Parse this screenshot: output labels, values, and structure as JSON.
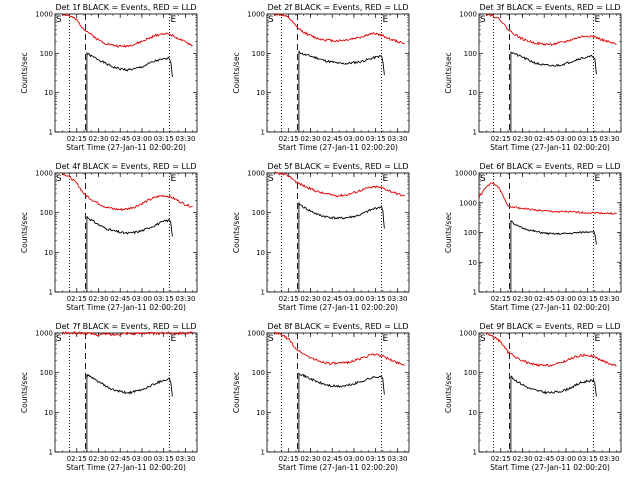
{
  "colors": {
    "events": "#000000",
    "lld": "#e00000",
    "frame": "#000000"
  },
  "chart_data": [
    {
      "type": "line",
      "title": "Det 1f BLACK = Events, RED = LLD",
      "xlabel": "Start Time (27-Jan-11 02:00:20)",
      "ylabel": "Counts/sec",
      "x_ticks": [
        "02:15",
        "02:30",
        "02:45",
        "03:00",
        "03:15",
        "03:30"
      ],
      "y_ticks": [
        "1",
        "10",
        "100",
        "1000"
      ],
      "y_scale": "log",
      "ylim": [
        1,
        1000
      ],
      "start_marker": "S",
      "end_marker": "E",
      "series": [
        {
          "name": "Events",
          "x": [
            "02:21",
            "02:22",
            "02:25",
            "02:30",
            "02:35",
            "02:40",
            "02:45",
            "02:50",
            "02:55",
            "03:00",
            "03:05",
            "03:10",
            "03:15",
            "03:19",
            "03:20",
            "03:21"
          ],
          "y": [
            null,
            100,
            85,
            70,
            55,
            45,
            40,
            38,
            40,
            45,
            55,
            65,
            70,
            75,
            60,
            25
          ]
        },
        {
          "name": "LLD",
          "x": [
            "02:05",
            "02:10",
            "02:15",
            "02:18",
            "02:20",
            "02:25",
            "02:30",
            "02:35",
            "02:40",
            "02:45",
            "02:50",
            "02:55",
            "03:00",
            "03:05",
            "03:10",
            "03:15",
            "03:20",
            "03:25",
            "03:30",
            "03:35"
          ],
          "y": [
            1000,
            900,
            700,
            500,
            420,
            300,
            220,
            180,
            160,
            150,
            155,
            170,
            200,
            240,
            290,
            320,
            300,
            240,
            190,
            160
          ]
        }
      ]
    },
    {
      "type": "line",
      "title": "Det 2f BLACK = Events, RED = LLD",
      "xlabel": "Start Time (27-Jan-11 02:00:20)",
      "ylabel": "Counts/sec",
      "x_ticks": [
        "02:15",
        "02:30",
        "02:45",
        "03:00",
        "03:15",
        "03:30"
      ],
      "y_ticks": [
        "1",
        "10",
        "100",
        "1000"
      ],
      "y_scale": "log",
      "ylim": [
        1,
        1000
      ],
      "start_marker": "S",
      "end_marker": "E",
      "series": [
        {
          "name": "Events",
          "x": [
            "02:21",
            "02:22",
            "02:25",
            "02:30",
            "02:35",
            "02:40",
            "02:45",
            "02:50",
            "02:55",
            "03:00",
            "03:05",
            "03:10",
            "03:15",
            "03:19",
            "03:20",
            "03:21"
          ],
          "y": [
            null,
            110,
            95,
            85,
            75,
            65,
            60,
            55,
            55,
            58,
            62,
            70,
            80,
            85,
            60,
            28
          ]
        },
        {
          "name": "LLD",
          "x": [
            "02:05",
            "02:10",
            "02:15",
            "02:18",
            "02:20",
            "02:25",
            "02:30",
            "02:35",
            "02:40",
            "02:45",
            "02:50",
            "02:55",
            "03:00",
            "03:05",
            "03:10",
            "03:15",
            "03:20",
            "03:25",
            "03:30",
            "03:35"
          ],
          "y": [
            1000,
            950,
            800,
            600,
            480,
            350,
            280,
            240,
            220,
            210,
            210,
            220,
            240,
            260,
            300,
            320,
            280,
            230,
            200,
            180
          ]
        }
      ]
    },
    {
      "type": "line",
      "title": "Det 3f BLACK = Events, RED = LLD",
      "xlabel": "Start Time (27-Jan-11 02:00:20)",
      "ylabel": "Counts/sec",
      "x_ticks": [
        "02:15",
        "02:30",
        "02:45",
        "03:00",
        "03:15",
        "03:30"
      ],
      "y_ticks": [
        "1",
        "10",
        "100",
        "1000"
      ],
      "y_scale": "log",
      "ylim": [
        1,
        1000
      ],
      "start_marker": "S",
      "end_marker": "E",
      "series": [
        {
          "name": "Events",
          "x": [
            "02:21",
            "02:22",
            "02:25",
            "02:30",
            "02:35",
            "02:40",
            "02:45",
            "02:50",
            "02:55",
            "03:00",
            "03:05",
            "03:10",
            "03:15",
            "03:19",
            "03:20",
            "03:21"
          ],
          "y": [
            null,
            110,
            95,
            80,
            65,
            55,
            50,
            48,
            50,
            55,
            65,
            75,
            80,
            85,
            70,
            30
          ]
        },
        {
          "name": "LLD",
          "x": [
            "02:05",
            "02:10",
            "02:15",
            "02:18",
            "02:20",
            "02:25",
            "02:30",
            "02:35",
            "02:40",
            "02:45",
            "02:50",
            "02:55",
            "03:00",
            "03:05",
            "03:10",
            "03:15",
            "03:20",
            "03:25",
            "03:30",
            "03:35"
          ],
          "y": [
            1000,
            900,
            700,
            500,
            400,
            300,
            230,
            200,
            180,
            170,
            170,
            180,
            200,
            230,
            260,
            280,
            260,
            220,
            190,
            170
          ]
        }
      ]
    },
    {
      "type": "line",
      "title": "Det 4f BLACK = Events, RED = LLD",
      "xlabel": "Start Time (27-Jan-11 02:00:20)",
      "ylabel": "Counts/sec",
      "x_ticks": [
        "02:15",
        "02:30",
        "02:45",
        "03:00",
        "03:15",
        "03:30"
      ],
      "y_ticks": [
        "1",
        "10",
        "100",
        "1000"
      ],
      "y_scale": "log",
      "ylim": [
        1,
        1000
      ],
      "start_marker": "S",
      "end_marker": "E",
      "series": [
        {
          "name": "Events",
          "x": [
            "02:21",
            "02:22",
            "02:25",
            "02:30",
            "02:35",
            "02:40",
            "02:45",
            "02:50",
            "02:55",
            "03:00",
            "03:05",
            "03:10",
            "03:15",
            "03:19",
            "03:20",
            "03:21"
          ],
          "y": [
            null,
            80,
            65,
            50,
            40,
            35,
            32,
            30,
            32,
            35,
            42,
            50,
            60,
            65,
            55,
            25
          ]
        },
        {
          "name": "LLD",
          "x": [
            "02:05",
            "02:10",
            "02:15",
            "02:18",
            "02:20",
            "02:25",
            "02:30",
            "02:35",
            "02:40",
            "02:45",
            "02:50",
            "02:55",
            "03:00",
            "03:05",
            "03:10",
            "03:15",
            "03:20",
            "03:25",
            "03:30",
            "03:35"
          ],
          "y": [
            1000,
            800,
            550,
            380,
            300,
            220,
            170,
            140,
            125,
            120,
            125,
            140,
            170,
            210,
            250,
            270,
            250,
            200,
            160,
            140
          ]
        }
      ]
    },
    {
      "type": "line",
      "title": "Det 5f BLACK = Events, RED = LLD",
      "xlabel": "Start Time (27-Jan-11 02:00:20)",
      "ylabel": "Counts/sec",
      "x_ticks": [
        "02:15",
        "02:30",
        "02:45",
        "03:00",
        "03:15",
        "03:30"
      ],
      "y_ticks": [
        "1",
        "10",
        "100",
        "1000"
      ],
      "y_scale": "log",
      "ylim": [
        1,
        1000
      ],
      "start_marker": "S",
      "end_marker": "E",
      "series": [
        {
          "name": "Events",
          "x": [
            "02:21",
            "02:22",
            "02:25",
            "02:30",
            "02:35",
            "02:40",
            "02:45",
            "02:50",
            "02:55",
            "03:00",
            "03:05",
            "03:10",
            "03:15",
            "03:19",
            "03:20",
            "03:21"
          ],
          "y": [
            null,
            170,
            140,
            110,
            90,
            80,
            75,
            72,
            75,
            80,
            90,
            110,
            130,
            140,
            110,
            40
          ]
        },
        {
          "name": "LLD",
          "x": [
            "02:05",
            "02:10",
            "02:15",
            "02:18",
            "02:20",
            "02:25",
            "02:30",
            "02:35",
            "02:40",
            "02:45",
            "02:50",
            "02:55",
            "03:00",
            "03:05",
            "03:10",
            "03:15",
            "03:20",
            "03:25",
            "03:30",
            "03:35"
          ],
          "y": [
            1000,
            950,
            850,
            700,
            600,
            480,
            400,
            340,
            300,
            280,
            270,
            280,
            320,
            370,
            420,
            450,
            420,
            350,
            300,
            260
          ]
        }
      ]
    },
    {
      "type": "line",
      "title": "Det 6f BLACK = Events, RED = LLD",
      "xlabel": "Start Time (27-Jan-11 02:00:20)",
      "ylabel": "Counts/sec",
      "x_ticks": [
        "02:15",
        "02:30",
        "02:45",
        "03:00",
        "03:15",
        "03:30"
      ],
      "y_ticks": [
        "1",
        "10",
        "100",
        "1000",
        "10000"
      ],
      "y_scale": "log",
      "ylim": [
        1,
        10000
      ],
      "start_marker": "S",
      "end_marker": "E",
      "series": [
        {
          "name": "Events",
          "x": [
            "02:21",
            "02:22",
            "02:25",
            "02:30",
            "02:35",
            "02:40",
            "02:45",
            "02:50",
            "02:55",
            "03:00",
            "03:05",
            "03:10",
            "03:15",
            "03:19",
            "03:20",
            "03:21"
          ],
          "y": [
            null,
            260,
            180,
            140,
            120,
            105,
            95,
            90,
            90,
            92,
            95,
            100,
            105,
            110,
            90,
            40
          ]
        },
        {
          "name": "LLD",
          "x": [
            "02:00",
            "02:03",
            "02:06",
            "02:09",
            "02:12",
            "02:15",
            "02:18",
            "02:20",
            "02:25",
            "02:30",
            "02:35",
            "02:40",
            "02:45",
            "02:50",
            "02:55",
            "03:00",
            "03:05",
            "03:10",
            "03:15",
            "03:20",
            "03:25",
            "03:30",
            "03:35"
          ],
          "y": [
            1500,
            2500,
            3800,
            4500,
            4000,
            2500,
            1200,
            800,
            700,
            650,
            600,
            560,
            530,
            510,
            500,
            500,
            480,
            470,
            460,
            460,
            450,
            440,
            430
          ]
        }
      ]
    },
    {
      "type": "line",
      "title": "Det 7f BLACK = Events, RED = LLD",
      "xlabel": "Start Time (27-Jan-11 02:00:20)",
      "ylabel": "Counts/sec",
      "x_ticks": [
        "02:15",
        "02:30",
        "02:45",
        "03:00",
        "03:15",
        "03:30"
      ],
      "y_ticks": [
        "1",
        "10",
        "100",
        "1000"
      ],
      "y_scale": "log",
      "ylim": [
        1,
        1000
      ],
      "start_marker": "S",
      "end_marker": "E",
      "series": [
        {
          "name": "Events",
          "x": [
            "02:21",
            "02:22",
            "02:25",
            "02:30",
            "02:35",
            "02:40",
            "02:45",
            "02:50",
            "02:55",
            "03:00",
            "03:05",
            "03:10",
            "03:15",
            "03:19",
            "03:20",
            "03:21"
          ],
          "y": [
            null,
            90,
            75,
            60,
            45,
            37,
            33,
            31,
            33,
            37,
            45,
            55,
            65,
            70,
            55,
            25
          ]
        },
        {
          "name": "LLD",
          "x": [
            "02:05",
            "02:10",
            "02:15",
            "02:18",
            "02:20",
            "02:25",
            "02:30",
            "02:35",
            "02:40",
            "02:45",
            "02:50",
            "02:55",
            "03:00",
            "03:05",
            "03:10",
            "03:15",
            "03:20",
            "03:25",
            "03:30",
            "03:35"
          ],
          "y": [
            1000,
            1000,
            1000,
            1000,
            1000,
            950,
            900,
            950,
            900,
            950,
            1000,
            950,
            1000,
            1000,
            950,
            1000,
            1000,
            1000,
            1000,
            1000
          ]
        }
      ]
    },
    {
      "type": "line",
      "title": "Det 8f BLACK = Events, RED = LLD",
      "xlabel": "Start Time (27-Jan-11 02:00:20)",
      "ylabel": "Counts/sec",
      "x_ticks": [
        "02:15",
        "02:30",
        "02:45",
        "03:00",
        "03:15",
        "03:30"
      ],
      "y_ticks": [
        "1",
        "10",
        "100",
        "1000"
      ],
      "y_scale": "log",
      "ylim": [
        1,
        1000
      ],
      "start_marker": "S",
      "end_marker": "E",
      "series": [
        {
          "name": "Events",
          "x": [
            "02:21",
            "02:22",
            "02:25",
            "02:30",
            "02:35",
            "02:40",
            "02:45",
            "02:50",
            "02:55",
            "03:00",
            "03:05",
            "03:10",
            "03:15",
            "03:19",
            "03:20",
            "03:21"
          ],
          "y": [
            null,
            100,
            85,
            70,
            58,
            50,
            46,
            45,
            47,
            52,
            60,
            70,
            78,
            82,
            65,
            28
          ]
        },
        {
          "name": "LLD",
          "x": [
            "02:05",
            "02:10",
            "02:15",
            "02:18",
            "02:20",
            "02:25",
            "02:30",
            "02:35",
            "02:40",
            "02:45",
            "02:50",
            "02:55",
            "03:00",
            "03:05",
            "03:10",
            "03:15",
            "03:20",
            "03:25",
            "03:30",
            "03:35"
          ],
          "y": [
            1000,
            900,
            700,
            500,
            400,
            300,
            240,
            200,
            180,
            170,
            170,
            180,
            200,
            230,
            270,
            290,
            260,
            210,
            180,
            160
          ]
        }
      ]
    },
    {
      "type": "line",
      "title": "Det 9f BLACK = Events, RED = LLD",
      "xlabel": "Start Time (27-Jan-11 02:00:20)",
      "ylabel": "Counts/sec",
      "x_ticks": [
        "02:15",
        "02:30",
        "02:45",
        "03:00",
        "03:15",
        "03:30"
      ],
      "y_ticks": [
        "1",
        "10",
        "100",
        "1000"
      ],
      "y_scale": "log",
      "ylim": [
        1,
        1000
      ],
      "start_marker": "S",
      "end_marker": "E",
      "series": [
        {
          "name": "Events",
          "x": [
            "02:21",
            "02:22",
            "02:25",
            "02:30",
            "02:35",
            "02:40",
            "02:45",
            "02:50",
            "02:55",
            "03:00",
            "03:05",
            "03:10",
            "03:15",
            "03:19",
            "03:20",
            "03:21"
          ],
          "y": [
            null,
            80,
            65,
            50,
            40,
            35,
            32,
            31,
            33,
            37,
            45,
            55,
            62,
            65,
            55,
            25
          ]
        },
        {
          "name": "LLD",
          "x": [
            "02:05",
            "02:10",
            "02:15",
            "02:18",
            "02:20",
            "02:25",
            "02:30",
            "02:35",
            "02:40",
            "02:45",
            "02:50",
            "02:55",
            "03:00",
            "03:05",
            "03:10",
            "03:15",
            "03:20",
            "03:25",
            "03:30",
            "03:35"
          ],
          "y": [
            1000,
            800,
            600,
            420,
            330,
            250,
            200,
            170,
            155,
            150,
            155,
            170,
            200,
            240,
            270,
            280,
            250,
            200,
            170,
            150
          ]
        }
      ]
    }
  ]
}
